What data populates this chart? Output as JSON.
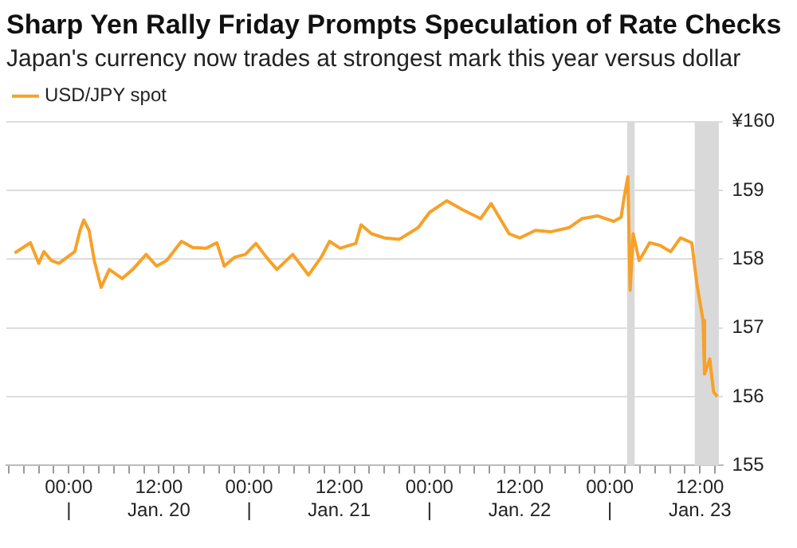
{
  "chart_data": {
    "type": "line",
    "title": "Sharp Yen Rally Friday Prompts Speculation of Rate Checks",
    "subtitle": "Japan's currency now trades at strongest mark this year versus dollar",
    "series": [
      {
        "name": "USD/JPY spot",
        "color": "#f7a128",
        "x": [
          "--01-19T16:48",
          "--01-19T18:54",
          "--01-19T20:00",
          "--01-19T20:42",
          "--01-19T21:42",
          "--01-19T22:42",
          "--01-19T23:48",
          "--01-20T00:48",
          "--01-20T01:30",
          "--01-20T02:00",
          "--01-20T02:42",
          "--01-20T03:24",
          "--01-20T04:18",
          "--01-20T05:24",
          "--01-20T07:06",
          "--01-20T08:30",
          "--01-20T10:18",
          "--01-20T11:42",
          "--01-20T13:00",
          "--01-20T15:00",
          "--01-20T16:30",
          "--01-20T18:18",
          "--01-20T19:42",
          "--01-20T20:42",
          "--01-20T22:06",
          "--01-20T23:30",
          "--01-21T00:54",
          "--01-21T02:18",
          "--01-21T03:42",
          "--01-21T05:48",
          "--01-21T07:54",
          "--01-21T09:36",
          "--01-21T10:42",
          "--01-21T12:06",
          "--01-21T14:12",
          "--01-21T14:54",
          "--01-21T16:18",
          "--01-21T18:00",
          "--01-21T20:00",
          "--01-21T22:30",
          "--01-22T00:00",
          "--01-22T02:18",
          "--01-22T04:24",
          "--01-22T06:48",
          "--01-22T08:12",
          "--01-22T10:36",
          "--01-22T12:00",
          "--01-22T14:06",
          "--01-22T16:12",
          "--01-22T18:36",
          "--01-22T20:18",
          "--01-22T22:24",
          "--01-23T00:30",
          "--01-23T01:30",
          "--01-23T01:54",
          "--01-23T02:24",
          "--01-23T02:42",
          "--01-23T03:06",
          "--01-23T03:54",
          "--01-23T05:18",
          "--01-23T06:42",
          "--01-23T08:06",
          "--01-23T09:24",
          "--01-23T10:54",
          "--01-23T11:36",
          "--01-23T12:24",
          "--01-23T12:36",
          "--01-23T13:18",
          "--01-23T13:48",
          "--01-23T14:18"
        ],
        "values": [
          158.09,
          158.24,
          157.94,
          158.11,
          157.98,
          157.94,
          158.03,
          158.11,
          158.42,
          158.57,
          158.42,
          157.98,
          157.59,
          157.85,
          157.72,
          157.85,
          158.07,
          157.9,
          157.98,
          158.26,
          158.17,
          158.16,
          158.24,
          157.9,
          158.03,
          158.07,
          158.23,
          158.03,
          157.85,
          158.07,
          157.77,
          158.03,
          158.26,
          158.16,
          158.23,
          158.5,
          158.37,
          158.31,
          158.29,
          158.46,
          158.68,
          158.85,
          158.72,
          158.59,
          158.81,
          158.37,
          158.31,
          158.42,
          158.4,
          158.46,
          158.59,
          158.63,
          158.55,
          158.61,
          158.9,
          159.2,
          157.55,
          158.37,
          157.98,
          158.24,
          158.2,
          158.11,
          158.31,
          158.24,
          157.63,
          157.11,
          156.33,
          156.55,
          156.07,
          156.0
        ]
      }
    ],
    "xlim": [
      "--01-19T15:42",
      "--01-23T15:00"
    ],
    "xticks": [
      {
        "value": "--01-19T16:00",
        "label": null
      },
      {
        "value": "--01-19T18:00",
        "label": null
      },
      {
        "value": "--01-19T20:00",
        "label": null
      },
      {
        "value": "--01-19T22:00",
        "label": null
      },
      {
        "value": "--01-20T00:00",
        "label": "00:00\n|"
      },
      {
        "value": "--01-20T02:00",
        "label": null
      },
      {
        "value": "--01-20T04:00",
        "label": null
      },
      {
        "value": "--01-20T06:00",
        "label": null
      },
      {
        "value": "--01-20T08:00",
        "label": null
      },
      {
        "value": "--01-20T10:00",
        "label": null
      },
      {
        "value": "--01-20T12:00",
        "label": "12:00\nJan. 20"
      },
      {
        "value": "--01-20T14:00",
        "label": null
      },
      {
        "value": "--01-20T16:00",
        "label": null
      },
      {
        "value": "--01-20T18:00",
        "label": null
      },
      {
        "value": "--01-20T20:00",
        "label": null
      },
      {
        "value": "--01-20T22:00",
        "label": null
      },
      {
        "value": "--01-21T00:00",
        "label": "00:00\n|"
      },
      {
        "value": "--01-21T02:00",
        "label": null
      },
      {
        "value": "--01-21T04:00",
        "label": null
      },
      {
        "value": "--01-21T06:00",
        "label": null
      },
      {
        "value": "--01-21T08:00",
        "label": null
      },
      {
        "value": "--01-21T10:00",
        "label": null
      },
      {
        "value": "--01-21T12:00",
        "label": "12:00\nJan. 21"
      },
      {
        "value": "--01-21T14:00",
        "label": null
      },
      {
        "value": "--01-21T16:00",
        "label": null
      },
      {
        "value": "--01-21T18:00",
        "label": null
      },
      {
        "value": "--01-21T20:00",
        "label": null
      },
      {
        "value": "--01-21T22:00",
        "label": null
      },
      {
        "value": "--01-22T00:00",
        "label": "00:00\n|"
      },
      {
        "value": "--01-22T02:00",
        "label": null
      },
      {
        "value": "--01-22T04:00",
        "label": null
      },
      {
        "value": "--01-22T06:00",
        "label": null
      },
      {
        "value": "--01-22T08:00",
        "label": null
      },
      {
        "value": "--01-22T10:00",
        "label": null
      },
      {
        "value": "--01-22T12:00",
        "label": "12:00\nJan. 22"
      },
      {
        "value": "--01-22T14:00",
        "label": null
      },
      {
        "value": "--01-22T16:00",
        "label": null
      },
      {
        "value": "--01-22T18:00",
        "label": null
      },
      {
        "value": "--01-22T20:00",
        "label": null
      },
      {
        "value": "--01-22T22:00",
        "label": null
      },
      {
        "value": "--01-23T00:00",
        "label": "00:00\n|"
      },
      {
        "value": "--01-23T02:00",
        "label": null
      },
      {
        "value": "--01-23T04:00",
        "label": null
      },
      {
        "value": "--01-23T06:00",
        "label": null
      },
      {
        "value": "--01-23T08:00",
        "label": null
      },
      {
        "value": "--01-23T10:00",
        "label": null
      },
      {
        "value": "--01-23T12:00",
        "label": "12:00\nJan. 23"
      },
      {
        "value": "--01-23T14:00",
        "label": null
      }
    ],
    "ylim": [
      155,
      160
    ],
    "yticks": [
      155,
      156,
      157,
      158,
      159,
      {
        "value": 160,
        "label": "¥160"
      }
    ],
    "bands": [
      {
        "axis": "x",
        "from": "--01-23T02:18",
        "to": "--01-23T03:18",
        "color": "#d9d9d9"
      },
      {
        "axis": "x",
        "from": "--01-23T11:18",
        "to": "--01-23T14:30",
        "color": "#d9d9d9"
      }
    ],
    "grid": "y",
    "legend": "top left",
    "marker": "none",
    "line_style": "solid"
  }
}
